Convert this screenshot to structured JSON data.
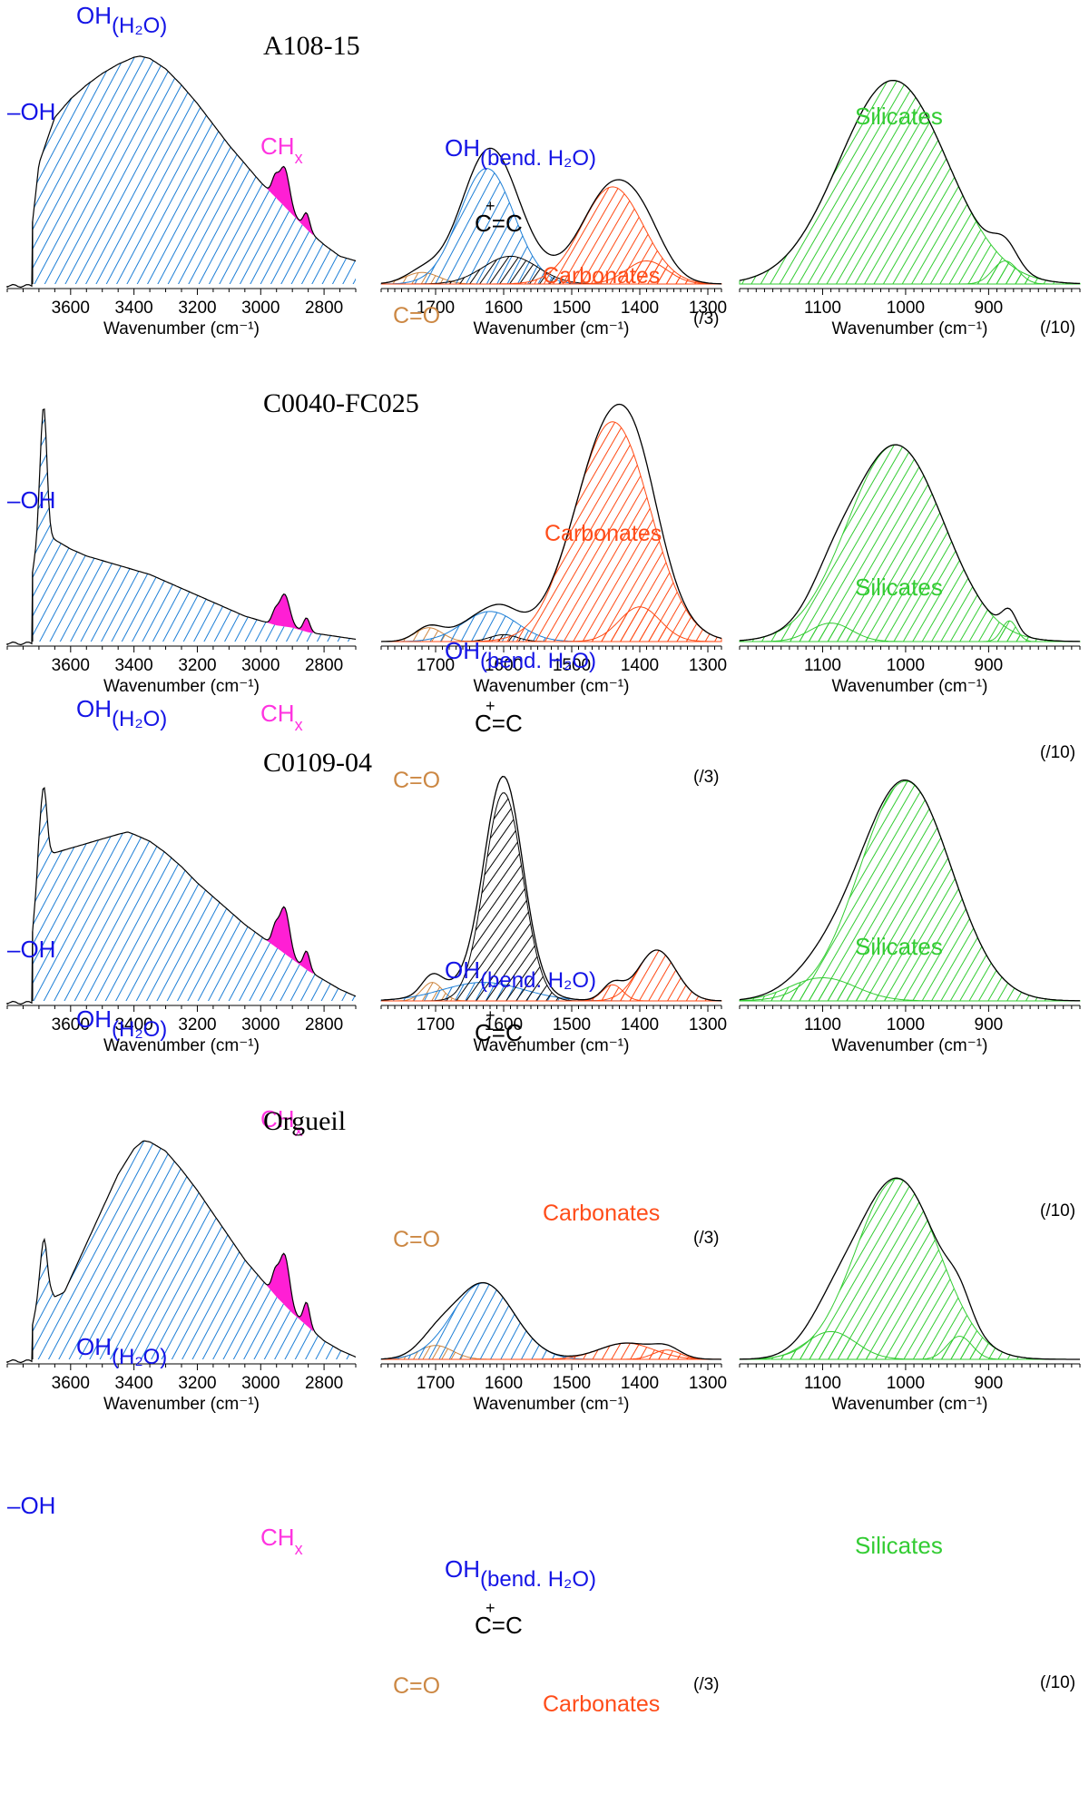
{
  "figure": {
    "colors": {
      "water": "#1e7fd6",
      "ch": "#ff1fd4",
      "carbonate": "#ff4a14",
      "silicate": "#33cc33",
      "co": "#cd853f",
      "cc": "#000000",
      "label_blue": "#1414e6",
      "label_magenta": "#ff33e0",
      "label_orange": "#ff4d1a",
      "label_green": "#33cc33",
      "label_brown": "#cc8844",
      "line": "#000000"
    },
    "common": {
      "xlabel": "Wavenumber (cm⁻¹)",
      "oh_main": "OH",
      "oh_sub": "(H₂O)",
      "oh_free": "–OH",
      "ch_main": "CH",
      "ch_sub": "x",
      "oh_bend_main": "OH",
      "oh_bend_sub": "(bend. H₂O)",
      "plus": "+",
      "cc": "C=C",
      "co": "C=O",
      "carbonates": "Carbonates",
      "silicates": "Silicates",
      "scale3": "(/3)",
      "scale10": "(/10)"
    }
  },
  "chart_data": [
    {
      "type": "area",
      "sample": "A108-15",
      "xlabel": "Wavenumber (cm⁻¹)",
      "panels": [
        {
          "region": "OH / CH stretching",
          "xlim": [
            3800,
            2700
          ],
          "ylim": [
            0,
            1
          ],
          "ticks": [
            3600,
            3400,
            3200,
            3000,
            2800
          ],
          "cutoff": 3720,
          "water": [
            [
              3720,
              0.27
            ],
            [
              3700,
              0.52
            ],
            [
              3650,
              0.72
            ],
            [
              3600,
              0.8
            ],
            [
              3550,
              0.86
            ],
            [
              3500,
              0.91
            ],
            [
              3450,
              0.95
            ],
            [
              3400,
              0.98
            ],
            [
              3380,
              0.985
            ],
            [
              3350,
              0.975
            ],
            [
              3300,
              0.93
            ],
            [
              3250,
              0.86
            ],
            [
              3200,
              0.78
            ],
            [
              3150,
              0.69
            ],
            [
              3100,
              0.6
            ],
            [
              3050,
              0.52
            ],
            [
              3000,
              0.44
            ],
            [
              2950,
              0.37
            ],
            [
              2900,
              0.3
            ],
            [
              2850,
              0.23
            ],
            [
              2800,
              0.17
            ],
            [
              2750,
              0.12
            ],
            [
              2700,
              0.1
            ]
          ],
          "ch_peaks": [
            [
              2925,
              0.17,
              16
            ],
            [
              2955,
              0.07,
              10
            ],
            [
              2855,
              0.07,
              10
            ]
          ],
          "ch_range": [
            2990,
            2830
          ],
          "free_oh": null
        },
        {
          "region": "Bending / carbonate",
          "xlim": [
            1780,
            1280
          ],
          "ylim": [
            0,
            1
          ],
          "ticks": [
            1700,
            1600,
            1500,
            1400,
            1300
          ],
          "components": [
            {
              "kind": "co",
              "center": 1720,
              "amp": 0.05,
              "sigma": 25
            },
            {
              "kind": "water",
              "center": 1625,
              "amp": 0.5,
              "sigma": 40
            },
            {
              "kind": "cc",
              "center": 1590,
              "amp": 0.12,
              "sigma": 40
            },
            {
              "kind": "carbonate",
              "center": 1440,
              "amp": 0.42,
              "sigma": 45
            },
            {
              "kind": "carbonate",
              "center": 1390,
              "amp": 0.1,
              "sigma": 30
            }
          ]
        },
        {
          "region": "Silicates",
          "xlim": [
            1200,
            790
          ],
          "ylim": [
            0,
            1
          ],
          "ticks": [
            1100,
            1000,
            900
          ],
          "components": [
            {
              "kind": "silicate",
              "center": 1015,
              "amp": 0.88,
              "sigma": 65
            },
            {
              "kind": "silicate",
              "center": 880,
              "amp": 0.1,
              "sigma": 15
            }
          ]
        }
      ]
    },
    {
      "type": "area",
      "sample": "C0040-FC025",
      "xlabel": "Wavenumber (cm⁻¹)",
      "panels": [
        {
          "region": "OH / CH stretching",
          "xlim": [
            3800,
            2700
          ],
          "ylim": [
            0,
            1
          ],
          "ticks": [
            3600,
            3400,
            3200,
            3000,
            2800
          ],
          "cutoff": 3720,
          "water": [
            [
              3720,
              0.3
            ],
            [
              3700,
              0.48
            ],
            [
              3650,
              0.44
            ],
            [
              3600,
              0.4
            ],
            [
              3550,
              0.37
            ],
            [
              3500,
              0.35
            ],
            [
              3450,
              0.33
            ],
            [
              3400,
              0.31
            ],
            [
              3350,
              0.29
            ],
            [
              3300,
              0.26
            ],
            [
              3250,
              0.23
            ],
            [
              3200,
              0.2
            ],
            [
              3150,
              0.17
            ],
            [
              3100,
              0.14
            ],
            [
              3050,
              0.11
            ],
            [
              3000,
              0.09
            ],
            [
              2950,
              0.07
            ],
            [
              2900,
              0.06
            ],
            [
              2850,
              0.04
            ],
            [
              2800,
              0.03
            ],
            [
              2750,
              0.02
            ],
            [
              2700,
              0.01
            ]
          ],
          "ch_peaks": [
            [
              2925,
              0.14,
              16
            ],
            [
              2955,
              0.05,
              10
            ],
            [
              2855,
              0.06,
              10
            ]
          ],
          "ch_range": [
            2990,
            2830
          ],
          "free_oh": {
            "center": 3685,
            "amp": 0.55,
            "sigma": 10
          }
        },
        {
          "region": "Bending / carbonate",
          "xlim": [
            1780,
            1280
          ],
          "ylim": [
            0,
            1
          ],
          "ticks": [
            1700,
            1600,
            1500,
            1400,
            1300
          ],
          "components": [
            {
              "kind": "co",
              "center": 1710,
              "amp": 0.06,
              "sigma": 20
            },
            {
              "kind": "water",
              "center": 1620,
              "amp": 0.13,
              "sigma": 40
            },
            {
              "kind": "cc",
              "center": 1600,
              "amp": 0.03,
              "sigma": 20
            },
            {
              "kind": "carbonate",
              "center": 1440,
              "amp": 0.95,
              "sigma": 55
            },
            {
              "kind": "carbonate",
              "center": 1400,
              "amp": 0.15,
              "sigma": 30
            }
          ]
        },
        {
          "region": "Silicates",
          "xlim": [
            1200,
            790
          ],
          "ylim": [
            0,
            1
          ],
          "ticks": [
            1100,
            1000,
            900
          ],
          "components": [
            {
              "kind": "silicate",
              "center": 1012,
              "amp": 0.85,
              "sigma": 58
            },
            {
              "kind": "silicate",
              "center": 1090,
              "amp": 0.08,
              "sigma": 25
            },
            {
              "kind": "silicate",
              "center": 875,
              "amp": 0.09,
              "sigma": 9
            }
          ]
        }
      ]
    },
    {
      "type": "area",
      "sample": "C0109-04",
      "xlabel": "Wavenumber (cm⁻¹)",
      "panels": [
        {
          "region": "OH / CH stretching",
          "xlim": [
            3800,
            2700
          ],
          "ylim": [
            0,
            1
          ],
          "ticks": [
            3600,
            3400,
            3200,
            3000,
            2800
          ],
          "cutoff": 3720,
          "water": [
            [
              3720,
              0.3
            ],
            [
              3700,
              0.62
            ],
            [
              3650,
              0.64
            ],
            [
              3600,
              0.66
            ],
            [
              3550,
              0.68
            ],
            [
              3500,
              0.7
            ],
            [
              3450,
              0.72
            ],
            [
              3420,
              0.73
            ],
            [
              3400,
              0.72
            ],
            [
              3350,
              0.69
            ],
            [
              3300,
              0.64
            ],
            [
              3250,
              0.58
            ],
            [
              3200,
              0.51
            ],
            [
              3150,
              0.45
            ],
            [
              3100,
              0.39
            ],
            [
              3050,
              0.33
            ],
            [
              3000,
              0.28
            ],
            [
              2950,
              0.23
            ],
            [
              2900,
              0.18
            ],
            [
              2850,
              0.13
            ],
            [
              2800,
              0.09
            ],
            [
              2750,
              0.05
            ],
            [
              2700,
              0.02
            ]
          ],
          "ch_peaks": [
            [
              2925,
              0.2,
              16
            ],
            [
              2955,
              0.07,
              10
            ],
            [
              2855,
              0.08,
              10
            ]
          ],
          "ch_range": [
            2990,
            2830
          ],
          "free_oh": {
            "center": 3685,
            "amp": 0.3,
            "sigma": 10
          }
        },
        {
          "region": "Bending / carbonate",
          "xlim": [
            1780,
            1280
          ],
          "ylim": [
            0,
            1
          ],
          "ticks": [
            1700,
            1600,
            1500,
            1400,
            1300
          ],
          "components": [
            {
              "kind": "co",
              "center": 1705,
              "amp": 0.08,
              "sigma": 15
            },
            {
              "kind": "water",
              "center": 1630,
              "amp": 0.08,
              "sigma": 60
            },
            {
              "kind": "cc",
              "center": 1600,
              "amp": 0.9,
              "sigma": 28
            },
            {
              "kind": "carbonate",
              "center": 1375,
              "amp": 0.22,
              "sigma": 28
            },
            {
              "kind": "carbonate",
              "center": 1440,
              "amp": 0.07,
              "sigma": 15
            }
          ]
        },
        {
          "region": "Silicates",
          "xlim": [
            1200,
            790
          ],
          "ylim": [
            0,
            1
          ],
          "ticks": [
            1100,
            1000,
            900
          ],
          "components": [
            {
              "kind": "silicate",
              "center": 1000,
              "amp": 0.95,
              "sigma": 55
            },
            {
              "kind": "silicate",
              "center": 1100,
              "amp": 0.1,
              "sigma": 40
            }
          ]
        }
      ]
    },
    {
      "type": "area",
      "sample": "Orgueil",
      "xlabel": "Wavenumber (cm⁻¹)",
      "panels": [
        {
          "region": "OH / CH stretching",
          "xlim": [
            3800,
            2700
          ],
          "ylim": [
            0,
            1
          ],
          "ticks": [
            3600,
            3400,
            3200,
            3000,
            2800
          ],
          "cutoff": 3720,
          "water": [
            [
              3720,
              0.15
            ],
            [
              3700,
              0.28
            ],
            [
              3680,
              0.33
            ],
            [
              3650,
              0.27
            ],
            [
              3620,
              0.29
            ],
            [
              3600,
              0.35
            ],
            [
              3550,
              0.5
            ],
            [
              3500,
              0.65
            ],
            [
              3450,
              0.8
            ],
            [
              3400,
              0.91
            ],
            [
              3370,
              0.945
            ],
            [
              3350,
              0.94
            ],
            [
              3300,
              0.9
            ],
            [
              3250,
              0.82
            ],
            [
              3200,
              0.73
            ],
            [
              3150,
              0.63
            ],
            [
              3100,
              0.53
            ],
            [
              3050,
              0.43
            ],
            [
              3000,
              0.35
            ],
            [
              2950,
              0.27
            ],
            [
              2900,
              0.2
            ],
            [
              2850,
              0.14
            ],
            [
              2800,
              0.08
            ],
            [
              2750,
              0.04
            ],
            [
              2700,
              0.01
            ]
          ],
          "ch_peaks": [
            [
              2925,
              0.22,
              16
            ],
            [
              2955,
              0.08,
              10
            ],
            [
              2855,
              0.1,
              10
            ]
          ],
          "ch_range": [
            2990,
            2830
          ],
          "free_oh": {
            "center": 3685,
            "amp": 0.2,
            "sigma": 10
          }
        },
        {
          "region": "Bending / carbonate",
          "xlim": [
            1780,
            1280
          ],
          "ylim": [
            0,
            1
          ],
          "ticks": [
            1700,
            1600,
            1500,
            1400,
            1300
          ],
          "components": [
            {
              "kind": "co",
              "center": 1700,
              "amp": 0.06,
              "sigma": 25
            },
            {
              "kind": "water",
              "center": 1630,
              "amp": 0.33,
              "sigma": 45
            },
            {
              "kind": "carbonate",
              "center": 1420,
              "amp": 0.07,
              "sigma": 40
            },
            {
              "kind": "carbonate",
              "center": 1360,
              "amp": 0.04,
              "sigma": 20
            }
          ]
        },
        {
          "region": "Silicates",
          "xlim": [
            1200,
            790
          ],
          "ylim": [
            0,
            1
          ],
          "ticks": [
            1100,
            1000,
            900
          ],
          "components": [
            {
              "kind": "silicate",
              "center": 1010,
              "amp": 0.78,
              "sigma": 50
            },
            {
              "kind": "silicate",
              "center": 1090,
              "amp": 0.12,
              "sigma": 30
            },
            {
              "kind": "silicate",
              "center": 935,
              "amp": 0.1,
              "sigma": 15
            }
          ]
        }
      ]
    }
  ]
}
